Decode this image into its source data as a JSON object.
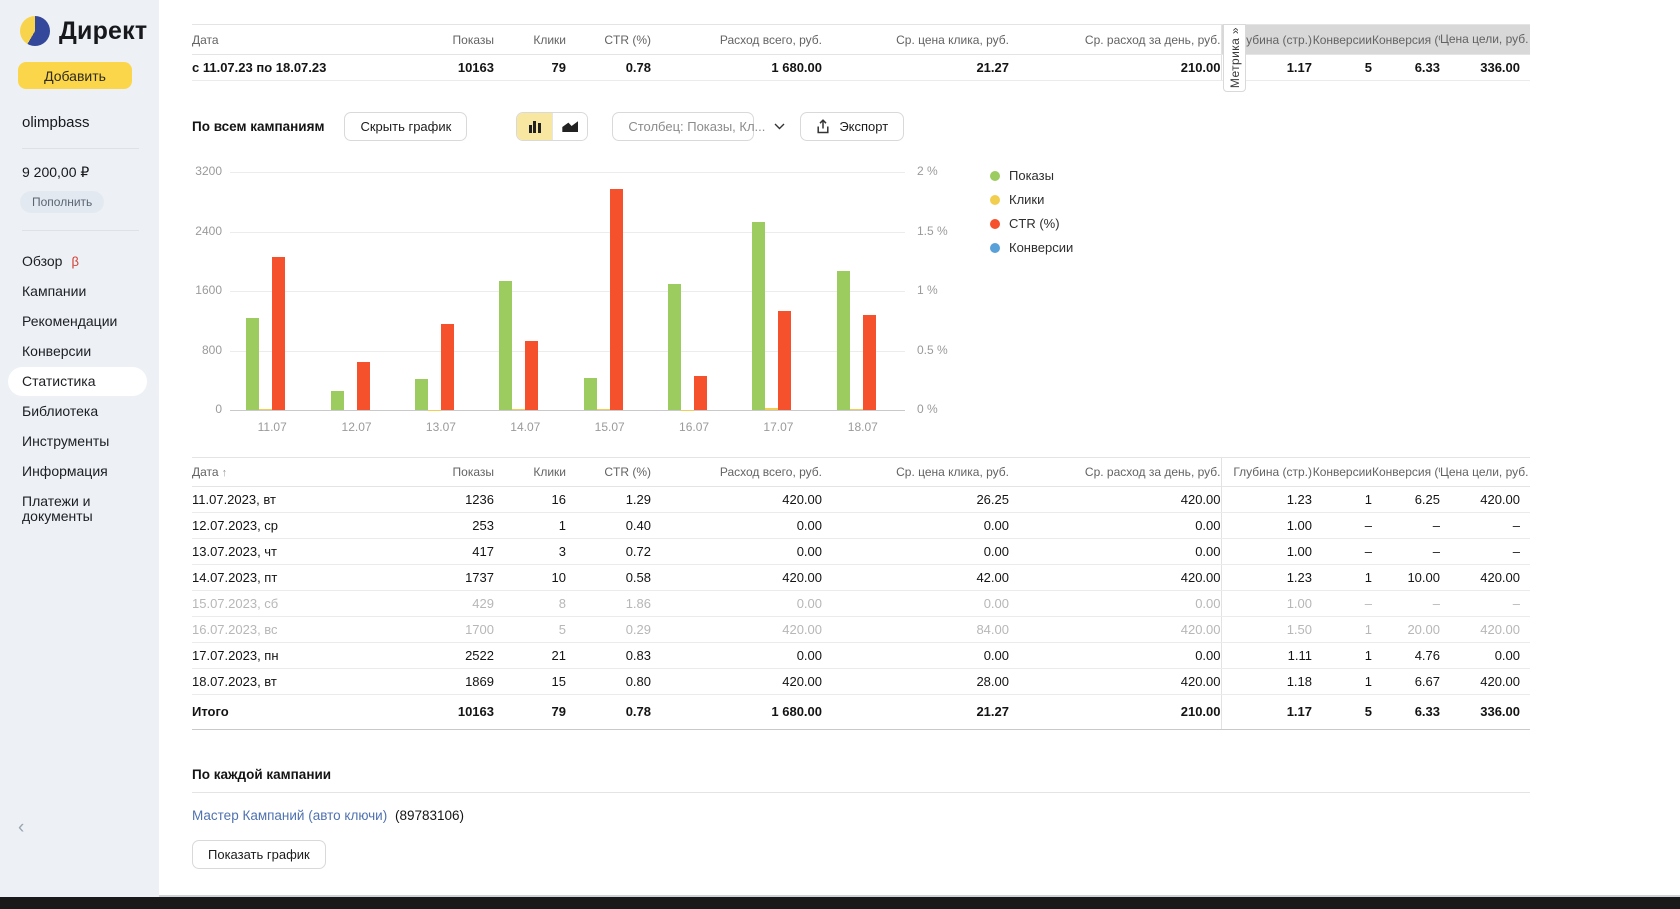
{
  "sidebar": {
    "logo_text": "Директ",
    "add_button": "Добавить",
    "username": "olimpbass",
    "balance": "9 200,00 ₽",
    "topup_button": "Пополнить",
    "menu": [
      {
        "label": "Обзор",
        "badge": "β",
        "active": false
      },
      {
        "label": "Кампании",
        "active": false
      },
      {
        "label": "Рекомендации",
        "active": false
      },
      {
        "label": "Конверсии",
        "active": false
      },
      {
        "label": "Статистика",
        "active": true
      },
      {
        "label": "Библиотека",
        "active": false
      },
      {
        "label": "Инструменты",
        "active": false
      },
      {
        "label": "Информация",
        "active": false
      },
      {
        "label": "Платежи и документы",
        "active": false
      }
    ],
    "collapse_icon": "‹"
  },
  "summary": {
    "columns": [
      "Дата",
      "Показы",
      "Клики",
      "CTR (%)",
      "Расход всего, руб.",
      "Ср. цена клика, руб.",
      "Ср. расход за день, руб.",
      "Глубина (стр.)",
      "Конверсии",
      "Конверсия (%)",
      "Цена цели, руб."
    ],
    "metrika_text": "Метрика »",
    "row": [
      "с 11.07.23 по 18.07.23",
      "10163",
      "79",
      "0.78",
      "1 680.00",
      "21.27",
      "210.00",
      "1.17",
      "5",
      "6.33",
      "336.00"
    ]
  },
  "toolbar": {
    "scope_label": "По всем кампаниям",
    "hide_chart_button": "Скрыть график",
    "column_select": "Столбец: Показы, Кл...",
    "export_button": "Экспорт"
  },
  "chart_data": {
    "type": "bar",
    "categories": [
      "11.07",
      "12.07",
      "13.07",
      "14.07",
      "15.07",
      "16.07",
      "17.07",
      "18.07"
    ],
    "series": [
      {
        "name": "Показы",
        "color": "#9CCB60",
        "axis": "left",
        "values": [
          1236,
          253,
          417,
          1737,
          429,
          1700,
          2522,
          1869
        ]
      },
      {
        "name": "Клики",
        "color": "#F2CE4E",
        "axis": "left",
        "values": [
          16,
          1,
          3,
          10,
          8,
          5,
          21,
          15
        ]
      },
      {
        "name": "CTR (%)",
        "color": "#F4512C",
        "axis": "right",
        "values": [
          1.29,
          0.4,
          0.72,
          0.58,
          1.86,
          0.29,
          0.83,
          0.8
        ]
      },
      {
        "name": "Конверсии",
        "color": "#58A0D8",
        "axis": "left",
        "values": [
          1,
          0,
          0,
          1,
          0,
          1,
          1,
          1
        ]
      }
    ],
    "left_axis": {
      "max": 3200,
      "ticks": [
        "3200",
        "2400",
        "1600",
        "800",
        "0"
      ]
    },
    "right_axis": {
      "max": 2,
      "ticks": [
        "2 %",
        "1.5 %",
        "1 %",
        "0.5 %",
        "0 %"
      ]
    },
    "grid": true,
    "legend_position": "right",
    "title": "",
    "xlabel": "",
    "ylabel": ""
  },
  "stats_table": {
    "sort_icon": "↑",
    "columns": [
      "Дата",
      "Показы",
      "Клики",
      "CTR (%)",
      "Расход всего, руб.",
      "Ср. цена клика, руб.",
      "Ср. расход за день, руб.",
      "Глубина (стр.)",
      "Конверсии",
      "Конверсия (%)",
      "Цена цели, руб."
    ],
    "rows": [
      {
        "muted": false,
        "cells": [
          "11.07.2023, вт",
          "1236",
          "16",
          "1.29",
          "420.00",
          "26.25",
          "420.00",
          "1.23",
          "1",
          "6.25",
          "420.00"
        ]
      },
      {
        "muted": false,
        "cells": [
          "12.07.2023, ср",
          "253",
          "1",
          "0.40",
          "0.00",
          "0.00",
          "0.00",
          "1.00",
          "–",
          "–",
          "–"
        ]
      },
      {
        "muted": false,
        "cells": [
          "13.07.2023, чт",
          "417",
          "3",
          "0.72",
          "0.00",
          "0.00",
          "0.00",
          "1.00",
          "–",
          "–",
          "–"
        ]
      },
      {
        "muted": false,
        "cells": [
          "14.07.2023, пт",
          "1737",
          "10",
          "0.58",
          "420.00",
          "42.00",
          "420.00",
          "1.23",
          "1",
          "10.00",
          "420.00"
        ]
      },
      {
        "muted": true,
        "cells": [
          "15.07.2023, сб",
          "429",
          "8",
          "1.86",
          "0.00",
          "0.00",
          "0.00",
          "1.00",
          "–",
          "–",
          "–"
        ]
      },
      {
        "muted": true,
        "cells": [
          "16.07.2023, вс",
          "1700",
          "5",
          "0.29",
          "420.00",
          "84.00",
          "420.00",
          "1.50",
          "1",
          "20.00",
          "420.00"
        ]
      },
      {
        "muted": false,
        "cells": [
          "17.07.2023, пн",
          "2522",
          "21",
          "0.83",
          "0.00",
          "0.00",
          "0.00",
          "1.11",
          "1",
          "4.76",
          "0.00"
        ]
      },
      {
        "muted": false,
        "cells": [
          "18.07.2023, вт",
          "1869",
          "15",
          "0.80",
          "420.00",
          "28.00",
          "420.00",
          "1.18",
          "1",
          "6.67",
          "420.00"
        ]
      }
    ],
    "total_row": [
      "Итого",
      "10163",
      "79",
      "0.78",
      "1 680.00",
      "21.27",
      "210.00",
      "1.17",
      "5",
      "6.33",
      "336.00"
    ]
  },
  "per_campaign": {
    "title": "По каждой кампании",
    "campaign_link": "Мастер Кампаний (авто ключи)",
    "campaign_id": "(89783106)",
    "show_chart_button": "Показать график"
  }
}
